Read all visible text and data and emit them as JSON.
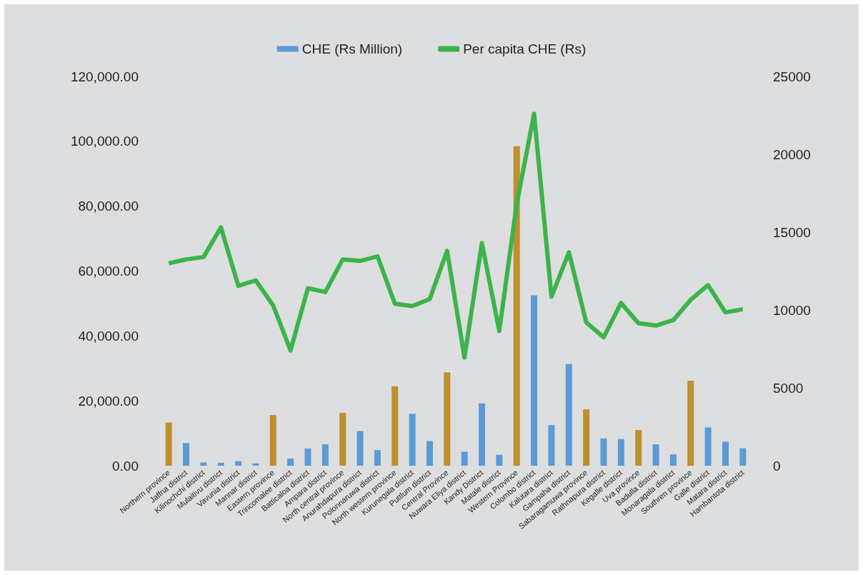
{
  "chart_data": {
    "type": "bar",
    "categories": [
      "Northern province",
      "Jaffna district",
      "Kilinochchi district",
      "Mulaitivu district",
      "Vavunia district",
      "Mannar district",
      "Eastern province",
      "Trincomalee district",
      "Batticaloa district",
      "Ampara district",
      "North central province",
      "Anurahdapura district",
      "Polonnaruwa district",
      "North western province",
      "Kurunegala district",
      "Puttlum district",
      "Central Province",
      "Nuwara Eliya district",
      "Kandy District",
      "Matale district",
      "Western Province",
      "Colombo district",
      "Kalutara district",
      "Gampaha district",
      "Sabaragamuwa province",
      "Rathnapura district",
      "Kegalle district",
      "Uva province",
      "Badulla district",
      "Monaragala district",
      "Southren province",
      "Galle district",
      "Matara district",
      "Hambantota district"
    ],
    "series": [
      {
        "name": "CHE (Rs Million)",
        "color": "#5b9bd5",
        "colors": [
          "#bf8f2c",
          "#5b9bd5",
          "#5b9bd5",
          "#5b9bd5",
          "#5b9bd5",
          "#5b9bd5",
          "#bf8f2c",
          "#5b9bd5",
          "#5b9bd5",
          "#5b9bd5",
          "#bf8f2c",
          "#5b9bd5",
          "#5b9bd5",
          "#bf8f2c",
          "#5b9bd5",
          "#5b9bd5",
          "#bf8f2c",
          "#5b9bd5",
          "#5b9bd5",
          "#5b9bd5",
          "#bf8f2c",
          "#5b9bd5",
          "#5b9bd5",
          "#5b9bd5",
          "#bf8f2c",
          "#5b9bd5",
          "#5b9bd5",
          "#bf8f2c",
          "#5b9bd5",
          "#5b9bd5",
          "#bf8f2c",
          "#5b9bd5",
          "#5b9bd5",
          "#5b9bd5"
        ],
        "values": [
          13300,
          7000,
          1000,
          900,
          1400,
          700,
          15600,
          2200,
          5300,
          6600,
          16300,
          10700,
          4800,
          24500,
          16000,
          7600,
          28800,
          4300,
          19200,
          3400,
          98500,
          52500,
          12500,
          31300,
          17400,
          8400,
          8200,
          11000,
          6600,
          3500,
          26200,
          11800,
          7400,
          5400
        ]
      },
      {
        "name": "Per capita CHE (Rs)",
        "type": "line",
        "axis": "y2",
        "color": "#3cb44b",
        "values": [
          13000,
          13250,
          13400,
          15300,
          11550,
          11900,
          10300,
          7400,
          11400,
          11150,
          13250,
          13150,
          13450,
          10400,
          10250,
          10700,
          13800,
          6950,
          14300,
          8650,
          16800,
          22600,
          10850,
          13700,
          9200,
          8250,
          10450,
          9150,
          9000,
          9350,
          10650,
          11600,
          9850,
          10050
        ]
      }
    ],
    "ylim": [
      0,
      120000
    ],
    "yticks": [
      {
        "value": 0,
        "label": "0.00"
      },
      {
        "value": 20000,
        "label": "20,000.00"
      },
      {
        "value": 40000,
        "label": "40,000.00"
      },
      {
        "value": 60000,
        "label": "60,000.00"
      },
      {
        "value": 80000,
        "label": "80,000.00"
      },
      {
        "value": 100000,
        "label": "100,000.00"
      },
      {
        "value": 120000,
        "label": "120,000.00"
      }
    ],
    "y2lim": [
      0,
      25000
    ],
    "y2ticks": [
      0,
      5000,
      10000,
      15000,
      20000,
      25000
    ],
    "legend": "top",
    "marker": "none"
  }
}
